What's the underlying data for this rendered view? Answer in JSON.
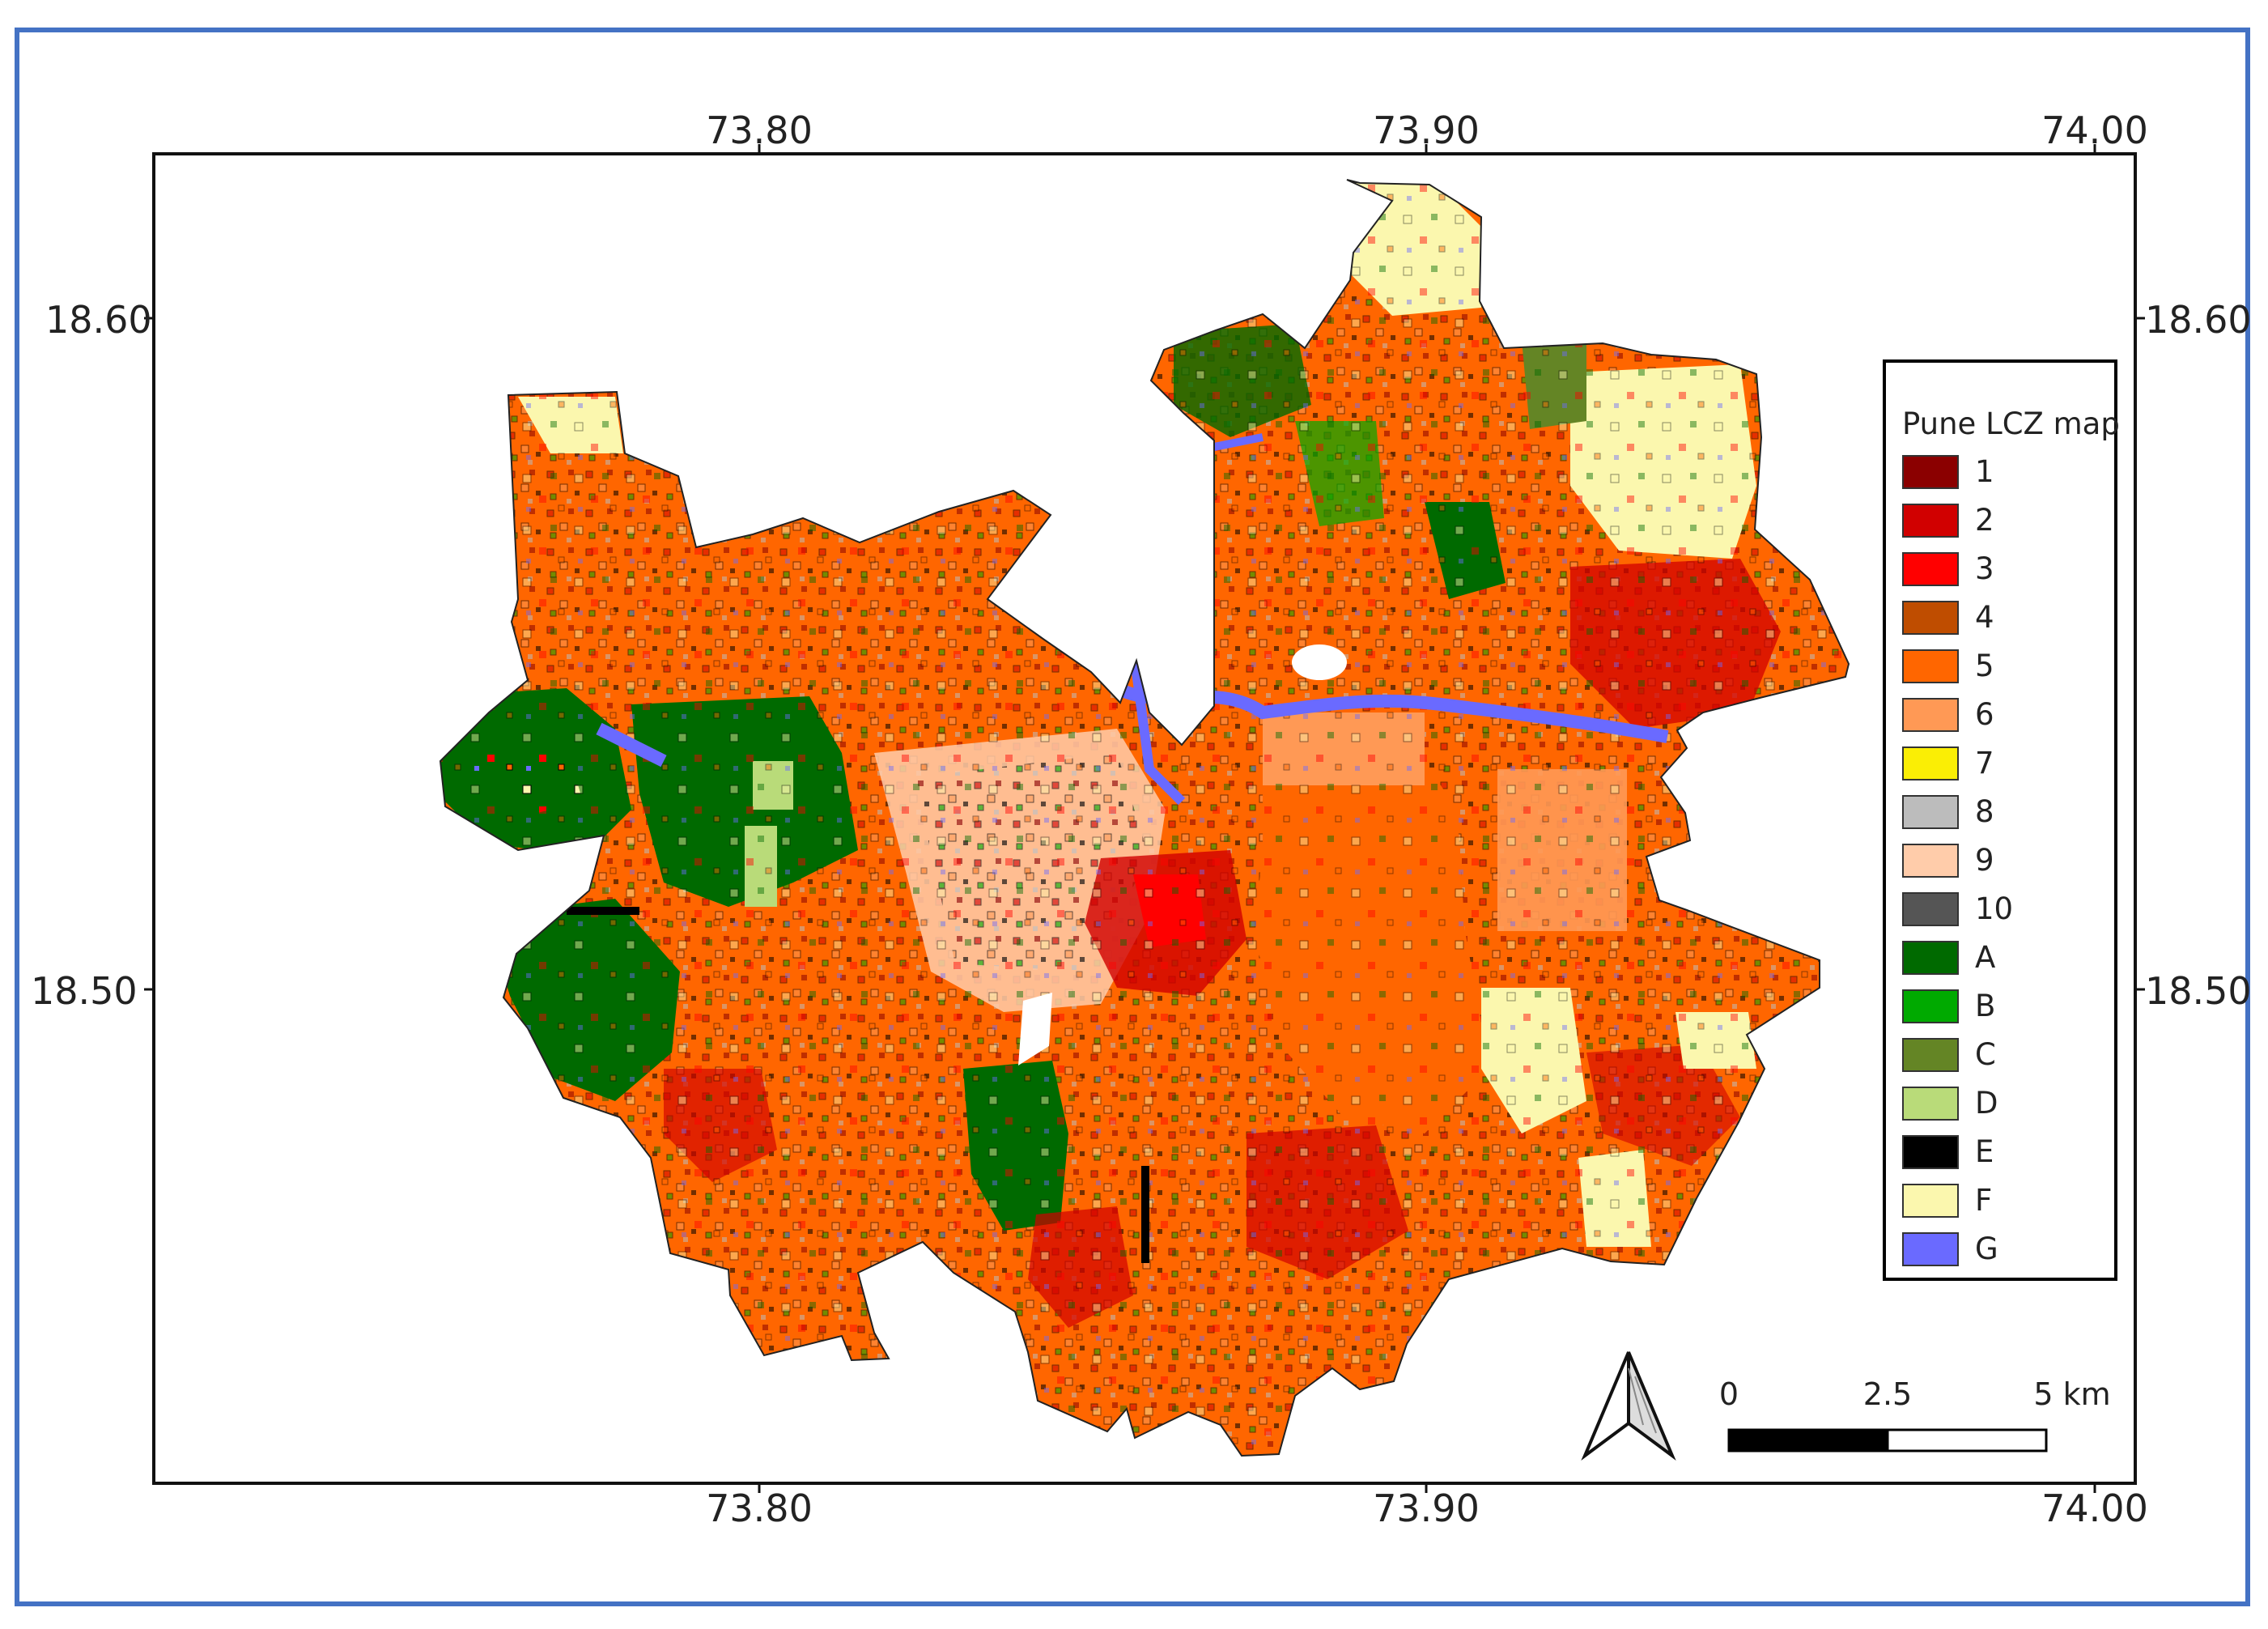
{
  "map": {
    "x_ticks": [
      "73.80",
      "73.90",
      "74.00"
    ],
    "y_ticks": [
      "18.60",
      "18.50"
    ]
  },
  "legend": {
    "title": "Pune LCZ map",
    "items": [
      {
        "label": "1",
        "color": "#8b0000"
      },
      {
        "label": "2",
        "color": "#d10000"
      },
      {
        "label": "3",
        "color": "#ff0000"
      },
      {
        "label": "4",
        "color": "#bf4d00"
      },
      {
        "label": "5",
        "color": "#ff6600"
      },
      {
        "label": "6",
        "color": "#ff9955"
      },
      {
        "label": "7",
        "color": "#faee05"
      },
      {
        "label": "8",
        "color": "#bcbcbc"
      },
      {
        "label": "9",
        "color": "#ffccaa"
      },
      {
        "label": "10",
        "color": "#555555"
      },
      {
        "label": "A",
        "color": "#006a00"
      },
      {
        "label": "B",
        "color": "#00aa00"
      },
      {
        "label": "C",
        "color": "#648525"
      },
      {
        "label": "D",
        "color": "#b9db79"
      },
      {
        "label": "E",
        "color": "#000000"
      },
      {
        "label": "F",
        "color": "#fbf7ae"
      },
      {
        "label": "G",
        "color": "#6a6aff"
      }
    ]
  },
  "scale_bar": {
    "labels": [
      "0",
      "2.5",
      "5 km"
    ]
  }
}
